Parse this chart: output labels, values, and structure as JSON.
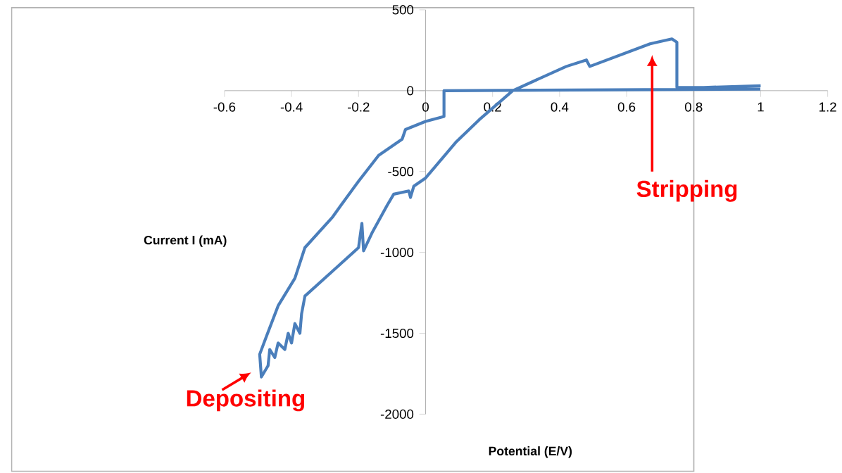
{
  "chart_data": {
    "type": "line",
    "xlabel": "Potential (E/V)",
    "ylabel": "Current I (mA)",
    "x": [
      0.999,
      0.055,
      0.055,
      0.0,
      -0.06,
      -0.07,
      -0.14,
      -0.2,
      -0.253,
      -0.277,
      -0.36,
      -0.39,
      -0.44,
      -0.475,
      -0.495,
      -0.49,
      -0.47,
      -0.465,
      -0.45,
      -0.44,
      -0.42,
      -0.41,
      -0.4,
      -0.39,
      -0.375,
      -0.37,
      -0.36,
      -0.28,
      -0.2,
      -0.19,
      -0.185,
      -0.16,
      -0.115,
      -0.095,
      -0.05,
      -0.045,
      -0.035,
      0.0,
      0.09,
      0.16,
      0.26,
      0.42,
      0.48,
      0.49,
      0.67,
      0.735,
      0.75,
      0.75,
      0.83,
      1.0
    ],
    "series": [
      {
        "color": "#4a7ebb",
        "values": [
          10,
          0,
          -160,
          -190,
          -240,
          -300,
          -400,
          -560,
          -710,
          -780,
          -970,
          -1160,
          -1330,
          -1520,
          -1630,
          -1770,
          -1700,
          -1600,
          -1650,
          -1560,
          -1600,
          -1500,
          -1560,
          -1440,
          -1500,
          -1380,
          -1270,
          -1120,
          -970,
          -820,
          -990,
          -880,
          -710,
          -640,
          -620,
          -660,
          -590,
          -540,
          -320,
          -180,
          0,
          150,
          190,
          150,
          290,
          320,
          300,
          20,
          20,
          30
        ]
      }
    ],
    "xlim": [
      -0.6,
      1.2
    ],
    "ylim": [
      -2000,
      500
    ],
    "xticks": [
      -0.6,
      -0.4,
      -0.2,
      0,
      0.2,
      0.4,
      0.6,
      0.8,
      1,
      1.2
    ],
    "yticks": [
      -2000,
      -1500,
      -1000,
      -500,
      0,
      500
    ],
    "marker": "none",
    "annotations": [
      "Stripping",
      "Depositing"
    ]
  }
}
